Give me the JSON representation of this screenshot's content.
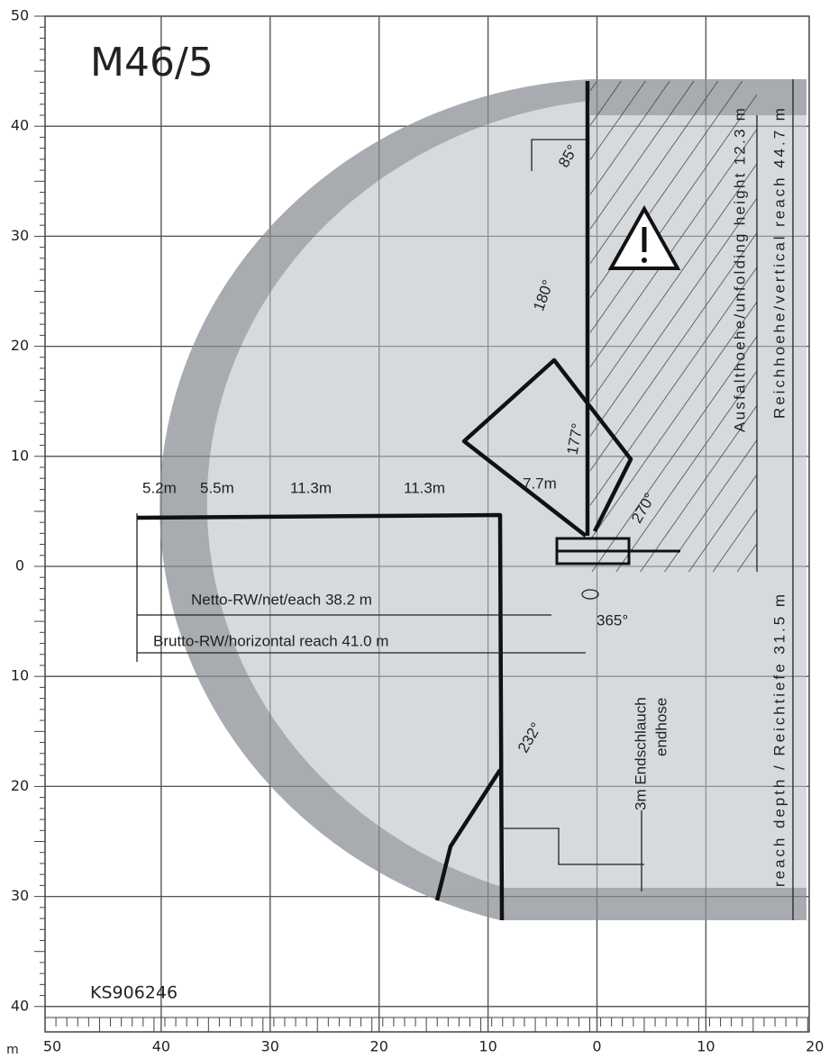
{
  "title": "M46/5",
  "drawing_number": "KS906246",
  "y_axis_labels": [
    "50",
    "40",
    "30",
    "20",
    "10",
    "0",
    "10",
    "20",
    "30",
    "40"
  ],
  "x_axis_unit": "m",
  "x_axis_labels": [
    "50",
    "40",
    "30",
    "20",
    "10",
    "0",
    "10",
    "20"
  ],
  "segment_labels": [
    "5.2m",
    "5.5m",
    "11.3m",
    "11.3m",
    "7.7m"
  ],
  "net_reach": "Netto-RW/net/each 38.2 m",
  "horizontal_reach": "Brutto-RW/horizontal reach 41.0 m",
  "rotation": "365°",
  "end_hose": [
    "3m Endschlauch",
    "endhose"
  ],
  "unfolding_height": "Ausfalthoehe/unfolding height 12.3 m",
  "vertical_reach": "Reichhoehe/vertical reach 44.7 m",
  "reach_depth": "reach depth / Reichtiefe 31.5 m",
  "angles": [
    "85°",
    "180°",
    "177°",
    "270°",
    "232°"
  ]
}
